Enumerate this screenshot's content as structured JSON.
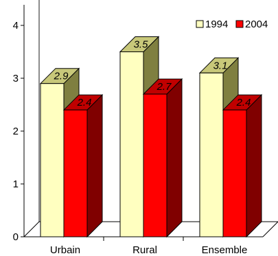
{
  "chart_data": {
    "type": "bar",
    "categories": [
      "Urbain",
      "Rural",
      "Ensemble"
    ],
    "series": [
      {
        "name": "1994",
        "values": [
          2.9,
          3.5,
          3.1
        ],
        "color_front": "#ffffc0",
        "color_top": "#c8c87a",
        "color_side": "#7f7f40",
        "value_labels": [
          "2.9",
          "3.5",
          "3.1"
        ]
      },
      {
        "name": "2004",
        "values": [
          2.4,
          2.7,
          2.4
        ],
        "color_front": "#ff0000",
        "color_top": "#c00000",
        "color_side": "#800000",
        "value_labels": [
          "2.4",
          "2.7",
          "2.4"
        ]
      }
    ],
    "y_ticks": [
      "0",
      "1",
      "2",
      "3",
      "4"
    ],
    "ylim": [
      0,
      4
    ],
    "legend_position": "top-right",
    "grid": false,
    "style": "3d-clustered-bar"
  }
}
